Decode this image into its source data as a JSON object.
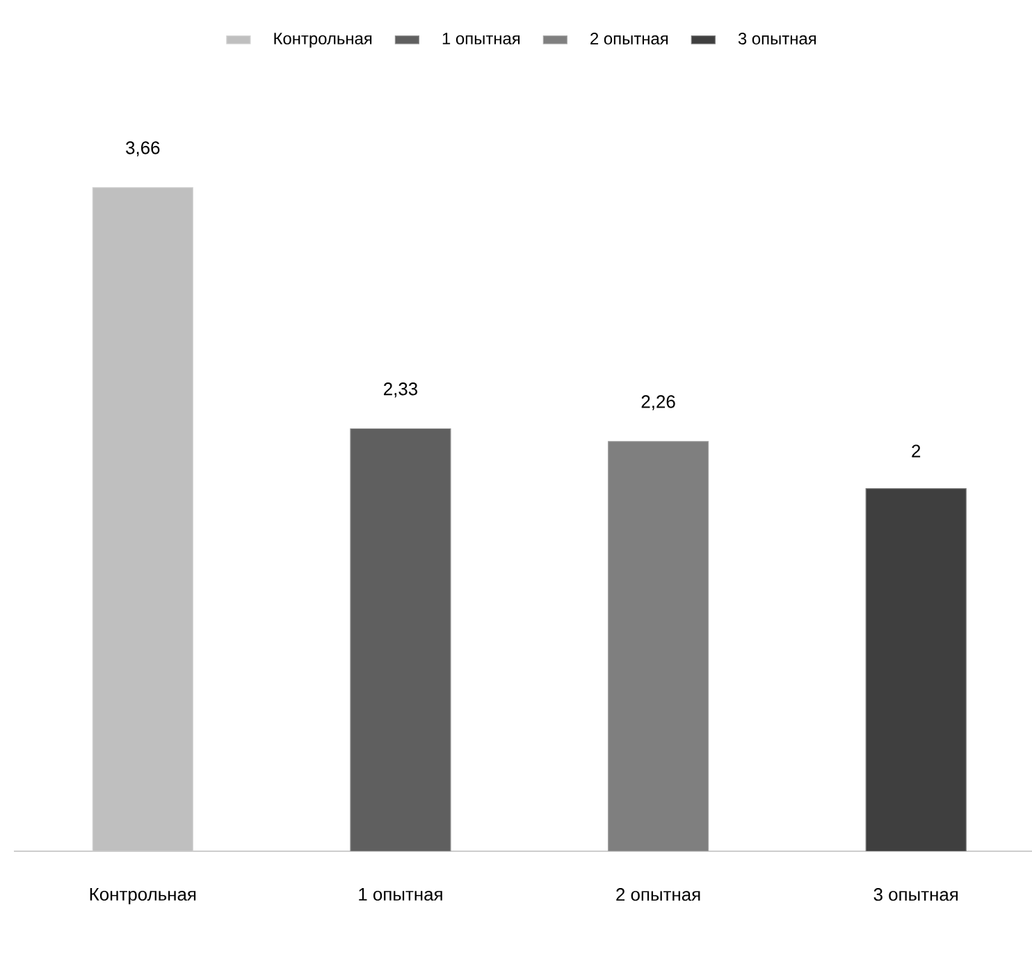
{
  "chart_data": {
    "type": "bar",
    "categories": [
      "Контрольная",
      "1 опытная",
      "2 опытная",
      "3 опытная"
    ],
    "series": [
      {
        "name": "Контрольная",
        "color": "#bfbfbf",
        "values": [
          3.66,
          null,
          null,
          null
        ],
        "value_labels": [
          "3,66",
          null,
          null,
          null
        ]
      },
      {
        "name": "1 опытная",
        "color": "#5f5f5f",
        "values": [
          null,
          2.33,
          null,
          null
        ],
        "value_labels": [
          null,
          "2,33",
          null,
          null
        ]
      },
      {
        "name": "2 опытная",
        "color": "#7f7f7f",
        "values": [
          null,
          null,
          2.26,
          null
        ],
        "value_labels": [
          null,
          null,
          "2,26",
          null
        ]
      },
      {
        "name": "3 опытная",
        "color": "#3f3f3f",
        "values": [
          null,
          null,
          null,
          2
        ],
        "value_labels": [
          null,
          null,
          null,
          "2"
        ]
      }
    ],
    "legend": "top"
  }
}
